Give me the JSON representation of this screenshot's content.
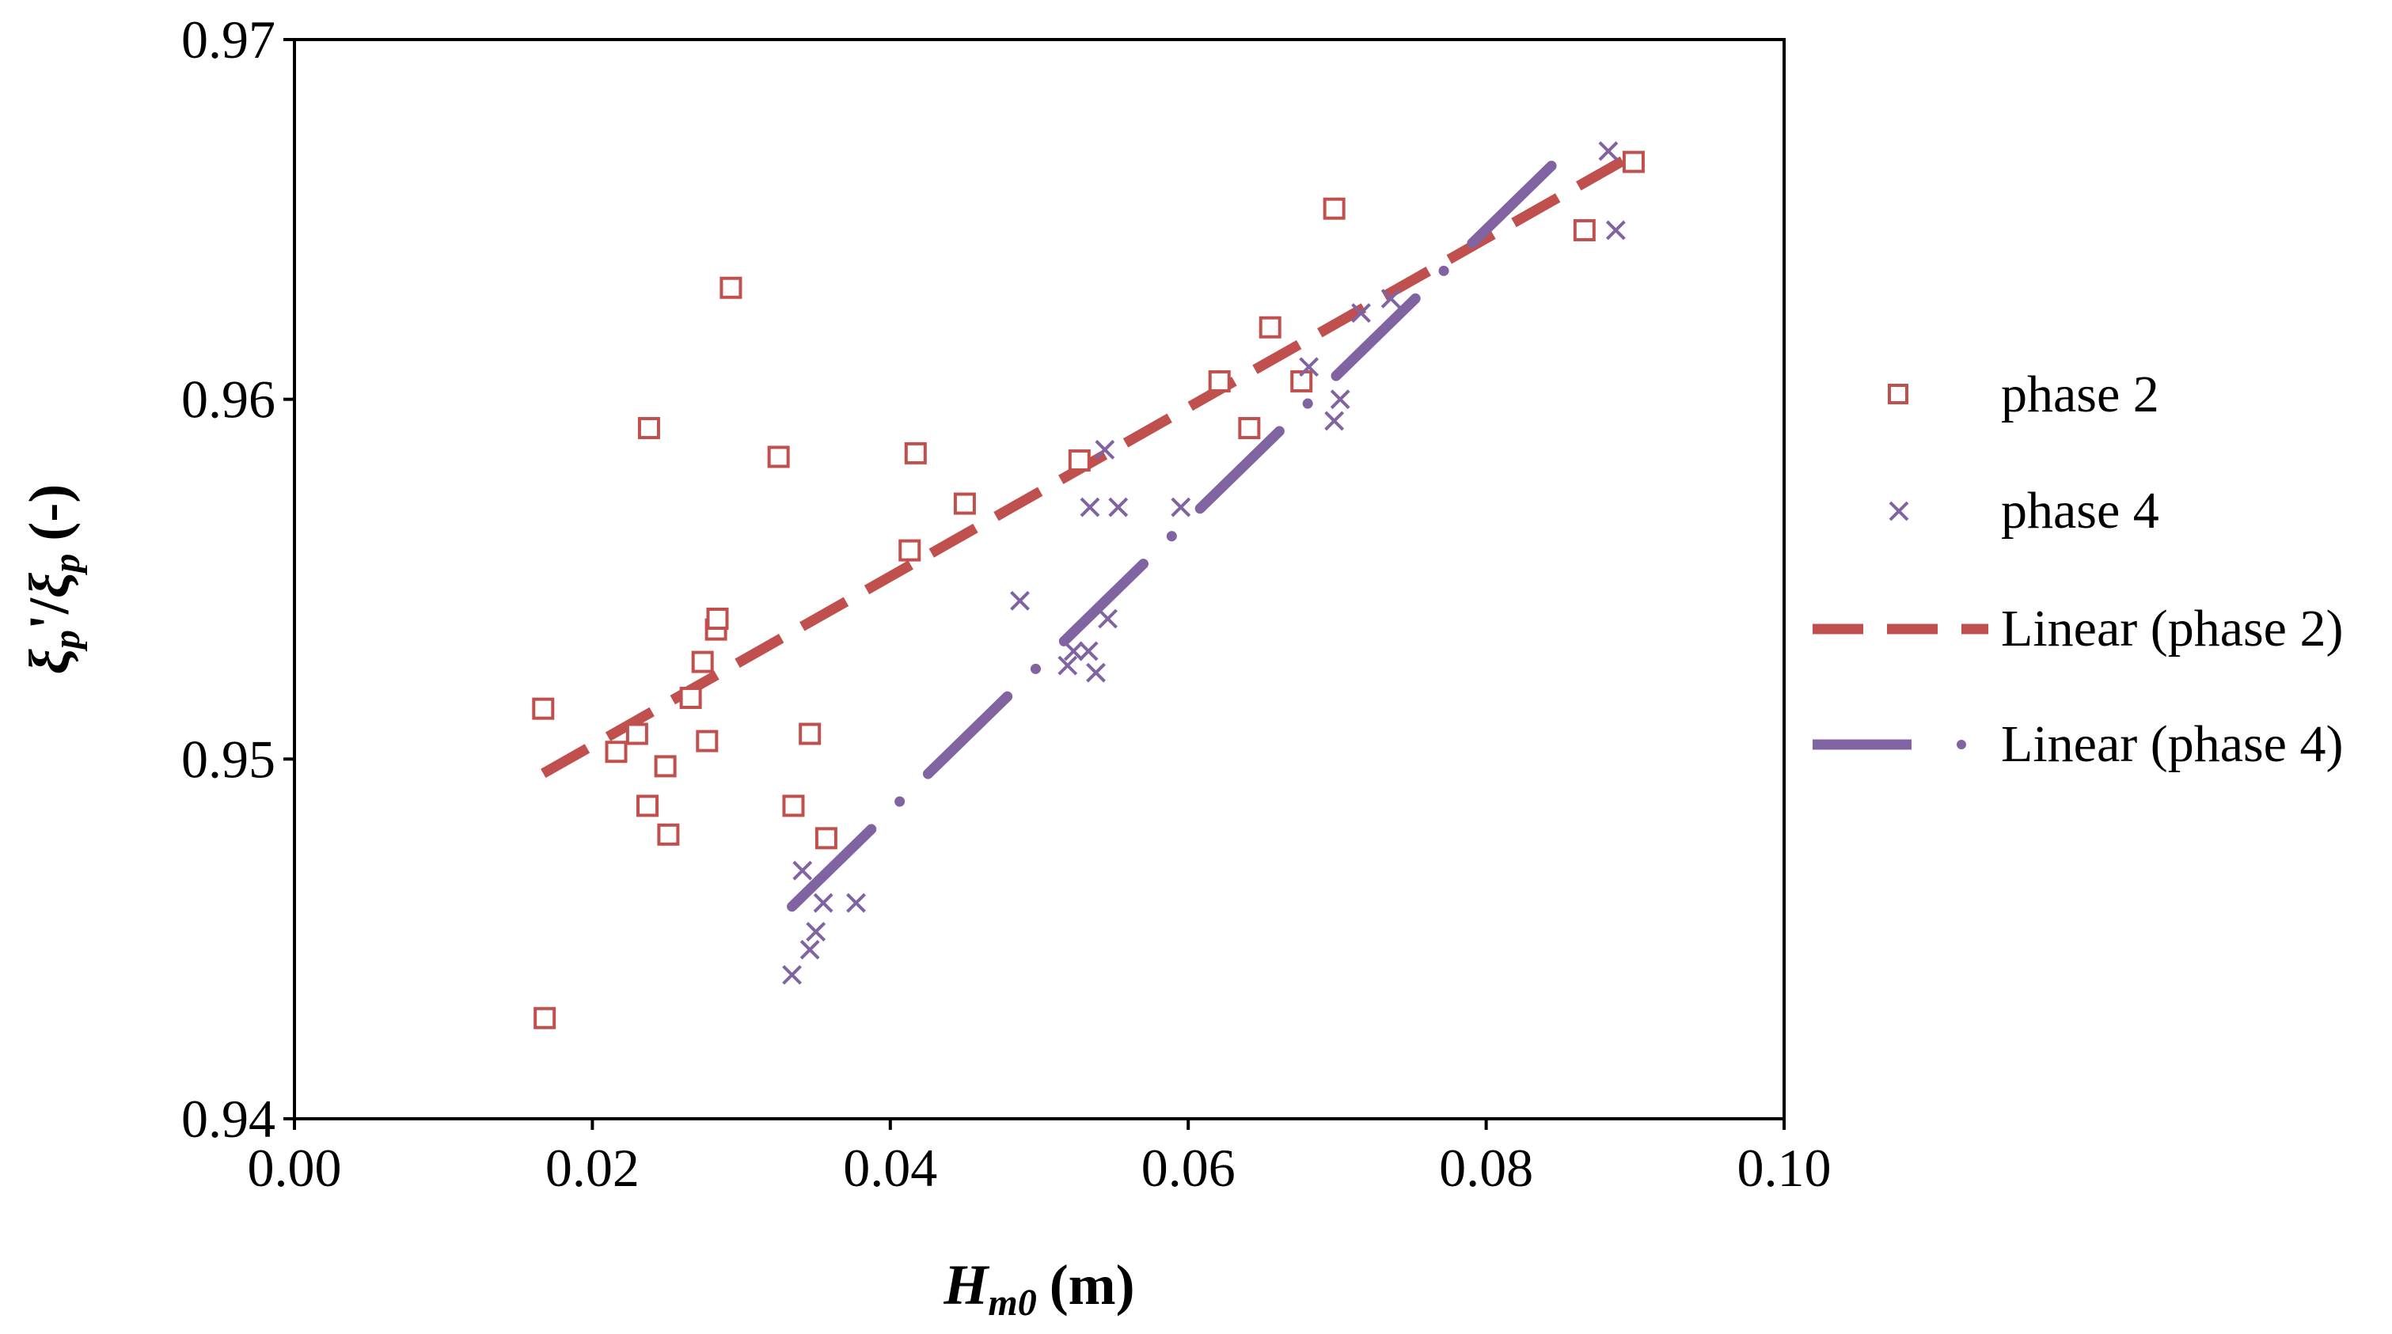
{
  "chart_data": {
    "type": "scatter",
    "title": "",
    "xlabel": {
      "main": "H",
      "sub": "m0",
      "unit": "(m)"
    },
    "ylabel": {
      "main": "ξ",
      "sub1": "p",
      "prime": "'/",
      "main2": "ξ",
      "sub2": "p",
      "unit": "(-)"
    },
    "xlim": [
      0.0,
      0.1
    ],
    "ylim": [
      0.94,
      0.97
    ],
    "xticks": [
      "0.00",
      "0.02",
      "0.04",
      "0.06",
      "0.08",
      "0.10"
    ],
    "yticks": [
      "0.94",
      "0.95",
      "0.96",
      "0.97"
    ],
    "grid": false,
    "legend_position": "right",
    "colors": {
      "phase2": "#c0504d",
      "phase4": "#8064a2"
    },
    "series": [
      {
        "name": "phase 2",
        "marker": "square",
        "x": [
          0.0167,
          0.0168,
          0.0216,
          0.023,
          0.0237,
          0.0238,
          0.0249,
          0.0251,
          0.0266,
          0.0274,
          0.0277,
          0.0283,
          0.0284,
          0.0293,
          0.0325,
          0.0335,
          0.0346,
          0.0357,
          0.0413,
          0.0417,
          0.045,
          0.0527,
          0.0621,
          0.0641,
          0.0655,
          0.0676,
          0.0698,
          0.0866,
          0.0899
        ],
        "y": [
          0.9514,
          0.9428,
          0.9502,
          0.9507,
          0.9487,
          0.9592,
          0.9498,
          0.9479,
          0.9517,
          0.9527,
          0.9505,
          0.9536,
          0.9539,
          0.9631,
          0.9584,
          0.9487,
          0.9507,
          0.9478,
          0.9558,
          0.9585,
          0.9571,
          0.9583,
          0.9605,
          0.9592,
          0.962,
          0.9605,
          0.9653,
          0.9647,
          0.9666
        ]
      },
      {
        "name": "phase 4",
        "marker": "x",
        "x": [
          0.0334,
          0.0341,
          0.0346,
          0.035,
          0.0355,
          0.0377,
          0.0487,
          0.0519,
          0.0523,
          0.0533,
          0.0534,
          0.0538,
          0.0544,
          0.0546,
          0.0553,
          0.0595,
          0.0681,
          0.0698,
          0.0702,
          0.0716,
          0.0736,
          0.0882,
          0.0887
        ],
        "y": [
          0.944,
          0.9469,
          0.9447,
          0.9452,
          0.946,
          0.946,
          0.9544,
          0.9526,
          0.953,
          0.953,
          0.957,
          0.9524,
          0.9586,
          0.9539,
          0.957,
          0.957,
          0.9609,
          0.9594,
          0.96,
          0.9624,
          0.9628,
          0.9669,
          0.9647
        ]
      }
    ],
    "trendlines": [
      {
        "name": "Linear (phase 2)",
        "style": "dash",
        "x": [
          0.0167,
          0.0899
        ],
        "y": [
          0.9496,
          0.9668
        ]
      },
      {
        "name": "Linear (phase 4)",
        "style": "dash-dot",
        "x": [
          0.0334,
          0.0854
        ],
        "y": [
          0.9459,
          0.9669
        ]
      }
    ]
  }
}
